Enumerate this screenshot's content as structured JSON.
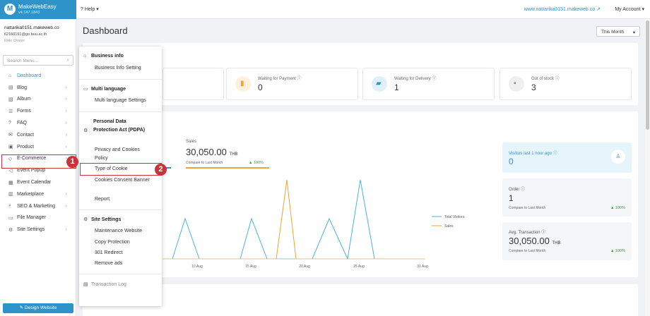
{
  "app": {
    "name": "MakeWebEasy",
    "version": "v4.147.1843"
  },
  "topbar": {
    "help": "Help",
    "site_url": "www.nattarika0151.makeweb.co",
    "account": "My Account"
  },
  "user": {
    "name": "nattarika0151.makeweb.co",
    "email": "62160151@go.buu.ac.th",
    "role": "Role Owner"
  },
  "search": {
    "placeholder": "Search Menu..."
  },
  "sidebar": {
    "items": [
      {
        "label": "Dashboard",
        "icon": "home-icon",
        "active": true
      },
      {
        "label": "Blog",
        "icon": "doc-icon",
        "chevron": true
      },
      {
        "label": "Album",
        "icon": "image-icon",
        "chevron": true
      },
      {
        "label": "Forms",
        "icon": "list-icon",
        "chevron": true
      },
      {
        "label": "FAQ",
        "icon": "question-icon",
        "chevron": true
      },
      {
        "label": "Contact",
        "icon": "mail-icon",
        "chevron": true
      },
      {
        "label": "Product",
        "icon": "cart-icon",
        "chevron": true
      },
      {
        "label": "E-Commerce",
        "icon": "tag-icon",
        "chevron": true
      },
      {
        "label": "Event Popup",
        "icon": "megaphone-icon",
        "chevron": false
      },
      {
        "label": "Event Calendar",
        "icon": "calendar-icon",
        "chevron": false
      },
      {
        "label": "Marketplace",
        "icon": "store-icon",
        "chevron": true
      },
      {
        "label": "SEO & Marketing",
        "icon": "search-icon",
        "chevron": true
      },
      {
        "label": "File Manager",
        "icon": "folder-icon",
        "chevron": false
      },
      {
        "label": "Site Settings",
        "icon": "gear-icon",
        "chevron": true
      }
    ],
    "design_button": "Design Website"
  },
  "page": {
    "title": "Dashboard",
    "period": "This Month"
  },
  "stats": [
    {
      "label": "Waiting for Payment",
      "value": "0",
      "color": "#f0a330"
    },
    {
      "label": "Waiting for Delivery",
      "value": "1",
      "color": "#2d93c9"
    },
    {
      "label": "Out of stock",
      "value": "3",
      "color": "#888888"
    }
  ],
  "sales": {
    "label": "Sales",
    "value": "30,050.00",
    "currency": "THB",
    "compare": "Compare to Last Month",
    "change": "100%"
  },
  "chart_data": {
    "type": "line",
    "x": [
      "10 Aug",
      "15 Aug",
      "20 Aug",
      "25 Aug",
      "31 Aug"
    ],
    "series": [
      {
        "name": "Total Visitors",
        "color": "#4db3d8"
      },
      {
        "name": "Sales",
        "color": "#f0a330"
      }
    ]
  },
  "cards": {
    "visitors": {
      "label": "Visitors last 1 hour ago",
      "value": "0"
    },
    "order": {
      "label": "Order",
      "value": "1",
      "compare": "Compare to Last Month",
      "change": "100%"
    },
    "avg": {
      "label": "Avg. Transaction",
      "value": "30,050.00",
      "currency": "THB",
      "compare": "Compare to Last Month",
      "change": "100%"
    }
  },
  "dropdown": {
    "business": {
      "title": "Business info",
      "items": [
        "Business Info Setting"
      ]
    },
    "language": {
      "title": "Multi language",
      "items": [
        "Multi language Settings"
      ]
    },
    "pdpa": {
      "title": "Personal Data Protection Act (PDPA)",
      "items": [
        "Privacy and Cookies Policy",
        "Type of Cookie",
        "Cookies Consent Banner",
        "Report"
      ]
    },
    "site": {
      "title": "Site Settings",
      "items": [
        "Maintenance Website",
        "Copy Protection",
        "301 Redirect",
        "Remove ads"
      ]
    },
    "log": {
      "title": "Transaction Log"
    }
  },
  "annotations": [
    "1",
    "2"
  ],
  "accent_color": "#2d93c9"
}
